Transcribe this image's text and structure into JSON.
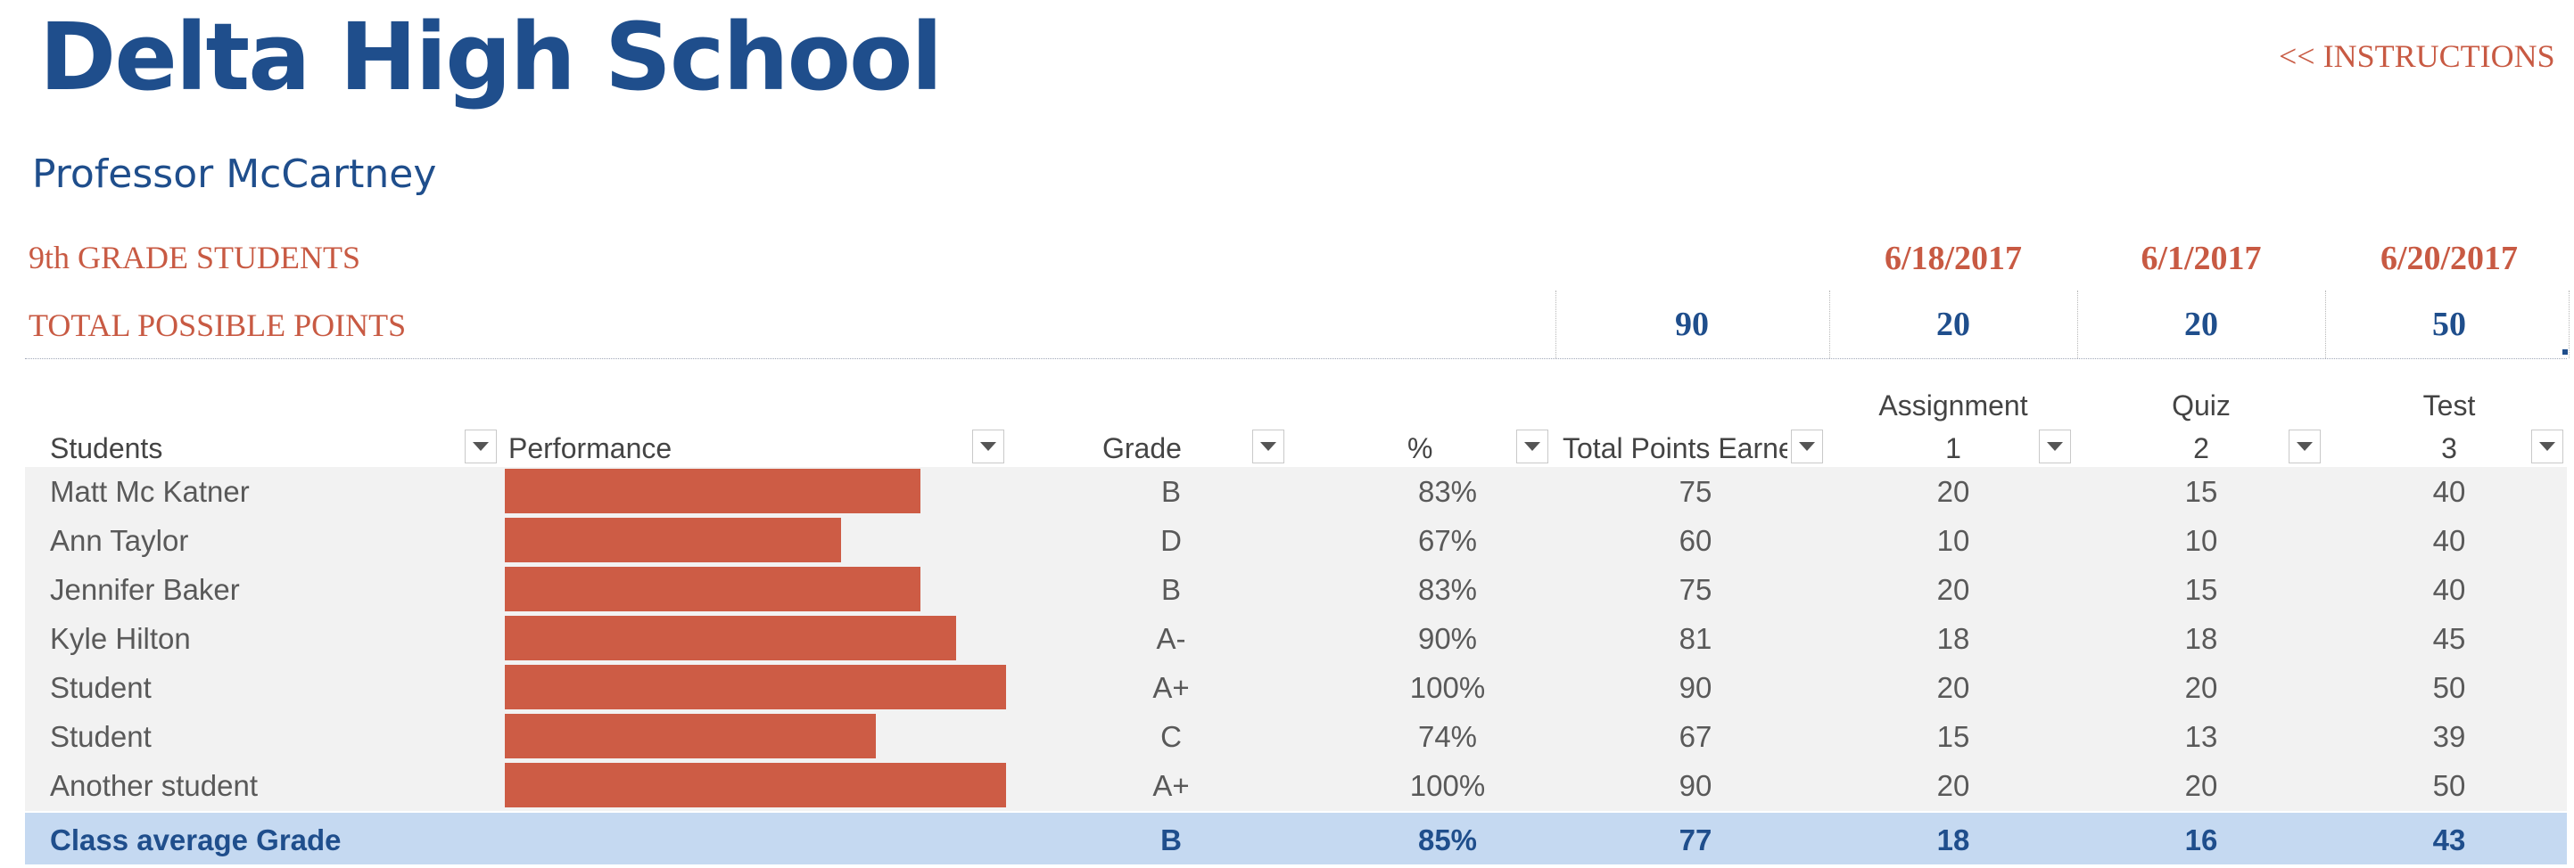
{
  "school_title": "Delta High School",
  "instructions_link": "<<  INSTRUCTIONS",
  "professor": "Professor McCartney",
  "section_students": "9th GRADE STUDENTS",
  "section_total_points": "TOTAL POSSIBLE POINTS",
  "dates": [
    "6/18/2017",
    "6/1/2017",
    "6/20/2017"
  ],
  "possible_points": [
    "90",
    "20",
    "20",
    "50"
  ],
  "headers": {
    "students": "Students",
    "performance": "Performance",
    "grade": "Grade",
    "percent": "%",
    "total": "Total Points Earne",
    "assignment_top": "Assignment",
    "assignment_num": "1",
    "quiz_top": "Quiz",
    "quiz_num": "2",
    "test_top": "Test",
    "test_num": "3"
  },
  "students": [
    {
      "name": "Matt Mc Katner",
      "performance": 0.83,
      "grade": "B",
      "percent": "83%",
      "total": "75",
      "a1": "20",
      "q2": "15",
      "t3": "40"
    },
    {
      "name": "Ann Taylor",
      "performance": 0.67,
      "grade": "D",
      "percent": "67%",
      "total": "60",
      "a1": "10",
      "q2": "10",
      "t3": "40"
    },
    {
      "name": "Jennifer Baker",
      "performance": 0.83,
      "grade": "B",
      "percent": "83%",
      "total": "75",
      "a1": "20",
      "q2": "15",
      "t3": "40"
    },
    {
      "name": "Kyle Hilton",
      "performance": 0.9,
      "grade": "A-",
      "percent": "90%",
      "total": "81",
      "a1": "18",
      "q2": "18",
      "t3": "45"
    },
    {
      "name": "Student",
      "performance": 1.0,
      "grade": "A+",
      "percent": "100%",
      "total": "90",
      "a1": "20",
      "q2": "20",
      "t3": "50"
    },
    {
      "name": "Student",
      "performance": 0.74,
      "grade": "C",
      "percent": "74%",
      "total": "67",
      "a1": "15",
      "q2": "13",
      "t3": "39"
    },
    {
      "name": "Another student",
      "performance": 1.0,
      "grade": "A+",
      "percent": "100%",
      "total": "90",
      "a1": "20",
      "q2": "20",
      "t3": "50"
    }
  ],
  "average": {
    "label": "Class average Grade",
    "grade": "B",
    "percent": "85%",
    "total": "77",
    "a1": "18",
    "q2": "16",
    "t3": "43"
  },
  "colors": {
    "title_blue": "#1F4E8C",
    "accent_red": "#C85A43",
    "bar_fill": "#CD5C45",
    "row_band": "#F2F2F2",
    "average_band": "#C5D9F1"
  },
  "icons": {
    "filter": "chevron-down-icon"
  }
}
